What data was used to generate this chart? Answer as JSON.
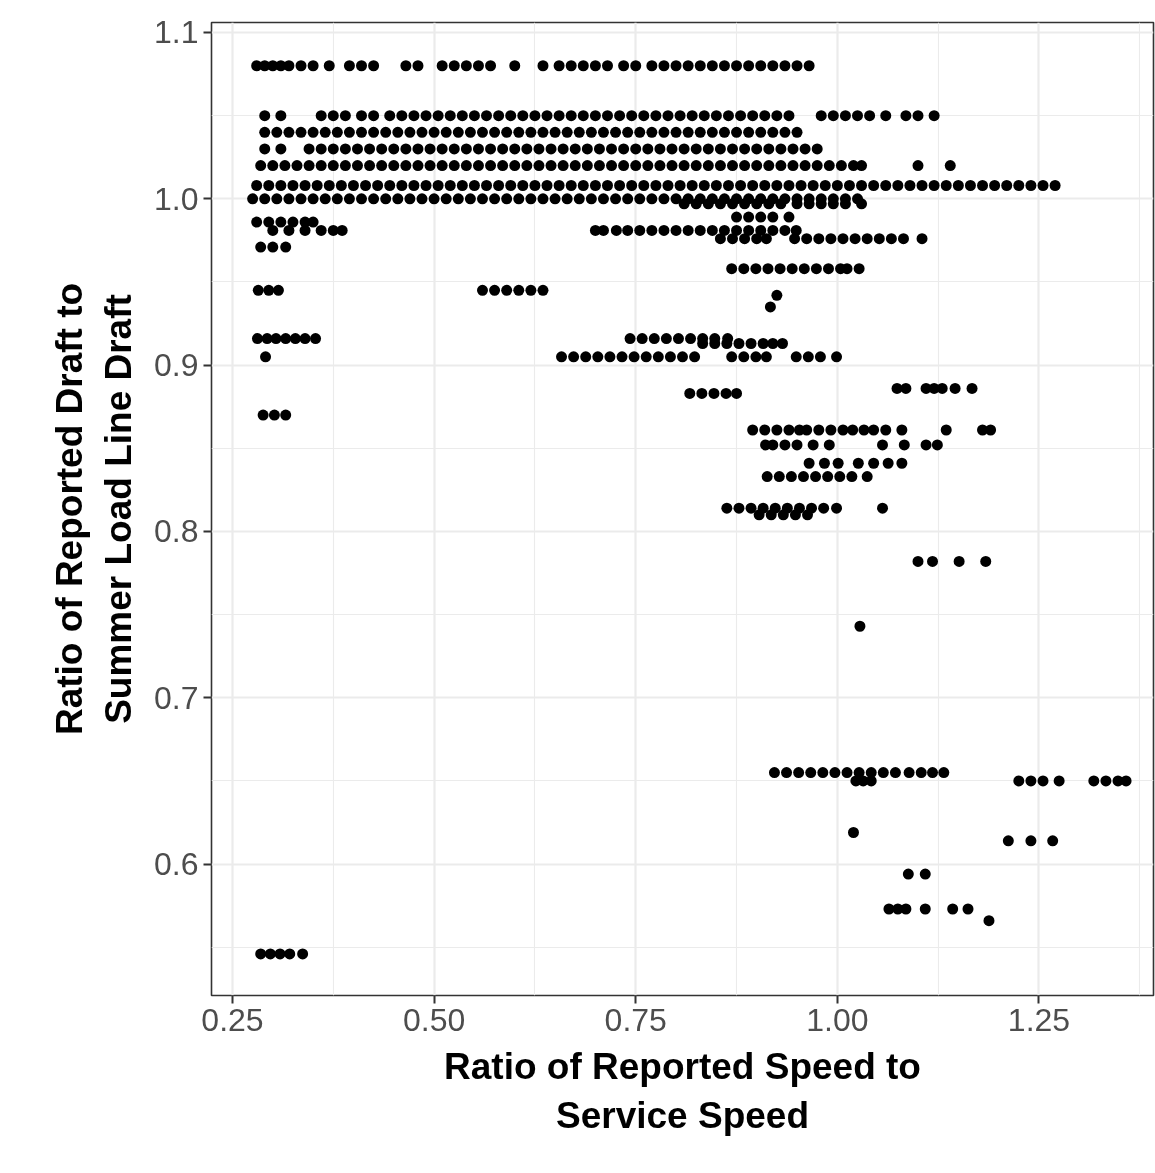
{
  "chart_data": {
    "type": "scatter",
    "xlabel": "Ratio of Reported Speed to Service Speed",
    "ylabel": "Ratio of Reported Draft to Summer Load Line Draft",
    "marker": "circle",
    "grid": true,
    "xlim": [
      0.224,
      1.392
    ],
    "ylim": [
      0.521,
      1.106
    ],
    "xticks": [
      {
        "value": 0.25,
        "label": "0.25"
      },
      {
        "value": 0.5,
        "label": "0.50"
      },
      {
        "value": 0.75,
        "label": "0.75"
      },
      {
        "value": 1.0,
        "label": "1.00"
      },
      {
        "value": 1.25,
        "label": "1.25"
      }
    ],
    "yticks": [
      {
        "value": 0.6,
        "label": "0.6"
      },
      {
        "value": 0.7,
        "label": "0.7"
      },
      {
        "value": 0.8,
        "label": "0.8"
      },
      {
        "value": 0.9,
        "label": "0.9"
      },
      {
        "value": 1.0,
        "label": "1.0"
      },
      {
        "value": 1.1,
        "label": "1.1"
      }
    ],
    "series": [
      {
        "color": "#000000",
        "x": [
          0.28,
          0.29,
          0.3,
          0.31,
          0.32,
          0.335,
          0.35,
          0.37,
          0.395,
          0.41,
          0.425,
          0.465,
          0.48,
          0.51,
          0.525,
          0.54,
          0.555,
          0.57,
          0.6,
          0.635,
          0.655,
          0.67,
          0.685,
          0.7,
          0.715,
          0.735,
          0.75,
          0.77,
          0.785,
          0.8,
          0.815,
          0.83,
          0.845,
          0.86,
          0.875,
          0.89,
          0.905,
          0.92,
          0.935,
          0.95,
          0.965
        ],
        "values": [
          1.08,
          1.08,
          1.08,
          1.08,
          1.08,
          1.08,
          1.08,
          1.08,
          1.08,
          1.08,
          1.08,
          1.08,
          1.08,
          1.08,
          1.08,
          1.08,
          1.08,
          1.08,
          1.08,
          1.08,
          1.08,
          1.08,
          1.08,
          1.08,
          1.08,
          1.08,
          1.08,
          1.08,
          1.08,
          1.08,
          1.08,
          1.08,
          1.08,
          1.08,
          1.08,
          1.08,
          1.08,
          1.08,
          1.08,
          1.08,
          1.08
        ]
      },
      {
        "color": "#000000",
        "x": [
          0.29,
          0.31,
          0.36,
          0.375,
          0.39,
          0.41,
          0.425,
          0.445,
          0.46,
          0.475,
          0.49,
          0.505,
          0.52,
          0.535,
          0.55,
          0.565,
          0.58,
          0.595,
          0.61,
          0.625,
          0.64,
          0.655,
          0.67,
          0.685,
          0.7,
          0.715,
          0.73,
          0.745,
          0.76,
          0.775,
          0.79,
          0.805,
          0.82,
          0.835,
          0.85,
          0.865,
          0.88,
          0.895,
          0.91,
          0.925,
          0.94,
          0.98,
          0.995,
          1.01,
          1.025,
          1.04,
          1.06,
          1.085,
          1.1,
          1.12
        ],
        "values": [
          1.05,
          1.05,
          1.05,
          1.05,
          1.05,
          1.05,
          1.05,
          1.05,
          1.05,
          1.05,
          1.05,
          1.05,
          1.05,
          1.05,
          1.05,
          1.05,
          1.05,
          1.05,
          1.05,
          1.05,
          1.05,
          1.05,
          1.05,
          1.05,
          1.05,
          1.05,
          1.05,
          1.05,
          1.05,
          1.05,
          1.05,
          1.05,
          1.05,
          1.05,
          1.05,
          1.05,
          1.05,
          1.05,
          1.05,
          1.05,
          1.05,
          1.05,
          1.05,
          1.05,
          1.05,
          1.05,
          1.05,
          1.05,
          1.05,
          1.05
        ]
      },
      {
        "color": "#000000",
        "x": [
          0.29,
          0.305,
          0.32,
          0.335,
          0.35,
          0.365,
          0.38,
          0.395,
          0.41,
          0.425,
          0.44,
          0.455,
          0.47,
          0.485,
          0.5,
          0.515,
          0.53,
          0.545,
          0.56,
          0.575,
          0.59,
          0.605,
          0.62,
          0.635,
          0.65,
          0.665,
          0.68,
          0.695,
          0.71,
          0.725,
          0.74,
          0.755,
          0.77,
          0.785,
          0.8,
          0.815,
          0.83,
          0.845,
          0.86,
          0.875,
          0.89,
          0.905,
          0.92,
          0.935,
          0.95
        ],
        "values": [
          1.04,
          1.04,
          1.04,
          1.04,
          1.04,
          1.04,
          1.04,
          1.04,
          1.04,
          1.04,
          1.04,
          1.04,
          1.04,
          1.04,
          1.04,
          1.04,
          1.04,
          1.04,
          1.04,
          1.04,
          1.04,
          1.04,
          1.04,
          1.04,
          1.04,
          1.04,
          1.04,
          1.04,
          1.04,
          1.04,
          1.04,
          1.04,
          1.04,
          1.04,
          1.04,
          1.04,
          1.04,
          1.04,
          1.04,
          1.04,
          1.04,
          1.04,
          1.04,
          1.04,
          1.04
        ]
      },
      {
        "color": "#000000",
        "x": [
          0.29,
          0.31,
          0.345,
          0.36,
          0.375,
          0.39,
          0.405,
          0.42,
          0.435,
          0.45,
          0.465,
          0.48,
          0.495,
          0.51,
          0.525,
          0.54,
          0.555,
          0.57,
          0.585,
          0.6,
          0.615,
          0.63,
          0.645,
          0.66,
          0.675,
          0.69,
          0.705,
          0.72,
          0.735,
          0.75,
          0.765,
          0.78,
          0.795,
          0.81,
          0.825,
          0.84,
          0.855,
          0.87,
          0.885,
          0.9,
          0.915,
          0.93,
          0.945,
          0.96,
          0.975
        ],
        "values": [
          1.03,
          1.03,
          1.03,
          1.03,
          1.03,
          1.03,
          1.03,
          1.03,
          1.03,
          1.03,
          1.03,
          1.03,
          1.03,
          1.03,
          1.03,
          1.03,
          1.03,
          1.03,
          1.03,
          1.03,
          1.03,
          1.03,
          1.03,
          1.03,
          1.03,
          1.03,
          1.03,
          1.03,
          1.03,
          1.03,
          1.03,
          1.03,
          1.03,
          1.03,
          1.03,
          1.03,
          1.03,
          1.03,
          1.03,
          1.03,
          1.03,
          1.03,
          1.03,
          1.03,
          1.03
        ]
      },
      {
        "color": "#000000",
        "x": [
          0.285,
          0.3,
          0.315,
          0.33,
          0.345,
          0.36,
          0.375,
          0.39,
          0.405,
          0.42,
          0.435,
          0.45,
          0.465,
          0.48,
          0.495,
          0.51,
          0.525,
          0.54,
          0.555,
          0.57,
          0.585,
          0.6,
          0.615,
          0.63,
          0.645,
          0.66,
          0.675,
          0.69,
          0.705,
          0.72,
          0.735,
          0.75,
          0.765,
          0.78,
          0.795,
          0.81,
          0.825,
          0.84,
          0.855,
          0.87,
          0.885,
          0.9,
          0.915,
          0.93,
          0.945,
          0.96,
          0.975,
          0.99,
          1.005,
          1.02,
          1.03,
          1.1,
          1.14
        ],
        "values": [
          1.02,
          1.02,
          1.02,
          1.02,
          1.02,
          1.02,
          1.02,
          1.02,
          1.02,
          1.02,
          1.02,
          1.02,
          1.02,
          1.02,
          1.02,
          1.02,
          1.02,
          1.02,
          1.02,
          1.02,
          1.02,
          1.02,
          1.02,
          1.02,
          1.02,
          1.02,
          1.02,
          1.02,
          1.02,
          1.02,
          1.02,
          1.02,
          1.02,
          1.02,
          1.02,
          1.02,
          1.02,
          1.02,
          1.02,
          1.02,
          1.02,
          1.02,
          1.02,
          1.02,
          1.02,
          1.02,
          1.02,
          1.02,
          1.02,
          1.02,
          1.02,
          1.02,
          1.02
        ]
      },
      {
        "color": "#000000",
        "x": [
          0.28,
          0.295,
          0.31,
          0.325,
          0.34,
          0.355,
          0.37,
          0.385,
          0.4,
          0.415,
          0.43,
          0.445,
          0.46,
          0.475,
          0.49,
          0.505,
          0.52,
          0.535,
          0.55,
          0.565,
          0.58,
          0.595,
          0.61,
          0.625,
          0.64,
          0.655,
          0.67,
          0.685,
          0.7,
          0.715,
          0.73,
          0.745,
          0.76,
          0.775,
          0.79,
          0.805,
          0.82,
          0.835,
          0.85,
          0.865,
          0.88,
          0.895,
          0.91,
          0.925,
          0.94,
          0.955,
          0.97,
          0.985,
          1.0,
          1.015,
          1.03,
          1.045,
          1.06,
          1.075,
          1.09,
          1.105,
          1.12,
          1.135,
          1.15,
          1.165,
          1.18,
          1.195,
          1.21,
          1.225,
          1.24,
          1.255,
          1.27
        ],
        "values": [
          1.008,
          1.008,
          1.008,
          1.008,
          1.008,
          1.008,
          1.008,
          1.008,
          1.008,
          1.008,
          1.008,
          1.008,
          1.008,
          1.008,
          1.008,
          1.008,
          1.008,
          1.008,
          1.008,
          1.008,
          1.008,
          1.008,
          1.008,
          1.008,
          1.008,
          1.008,
          1.008,
          1.008,
          1.008,
          1.008,
          1.008,
          1.008,
          1.008,
          1.008,
          1.008,
          1.008,
          1.008,
          1.008,
          1.008,
          1.008,
          1.008,
          1.008,
          1.008,
          1.008,
          1.008,
          1.008,
          1.008,
          1.008,
          1.008,
          1.008,
          1.008,
          1.008,
          1.008,
          1.008,
          1.008,
          1.008,
          1.008,
          1.008,
          1.008,
          1.008,
          1.008,
          1.008,
          1.008,
          1.008,
          1.008,
          1.008,
          1.008
        ]
      },
      {
        "color": "#000000",
        "x": [
          0.275,
          0.29,
          0.305,
          0.32,
          0.335,
          0.35,
          0.365,
          0.38,
          0.395,
          0.41,
          0.425,
          0.44,
          0.455,
          0.47,
          0.485,
          0.5,
          0.515,
          0.53,
          0.545,
          0.56,
          0.575,
          0.59,
          0.605,
          0.62,
          0.635,
          0.65,
          0.665,
          0.68,
          0.695,
          0.71,
          0.725,
          0.74,
          0.755,
          0.77,
          0.785,
          0.8,
          0.815,
          0.83,
          0.845,
          0.86,
          0.875,
          0.89,
          0.905,
          0.92,
          0.935,
          0.95,
          0.965,
          0.98,
          0.995,
          1.01,
          1.025
        ],
        "values": [
          1.0,
          1.0,
          1.0,
          1.0,
          1.0,
          1.0,
          1.0,
          1.0,
          1.0,
          1.0,
          1.0,
          1.0,
          1.0,
          1.0,
          1.0,
          1.0,
          1.0,
          1.0,
          1.0,
          1.0,
          1.0,
          1.0,
          1.0,
          1.0,
          1.0,
          1.0,
          1.0,
          1.0,
          1.0,
          1.0,
          1.0,
          1.0,
          1.0,
          1.0,
          1.0,
          1.0,
          1.0,
          1.0,
          1.0,
          1.0,
          1.0,
          1.0,
          1.0,
          1.0,
          1.0,
          1.0,
          1.0,
          1.0,
          1.0,
          1.0,
          1.0
        ]
      },
      {
        "color": "#000000",
        "x": [
          0.81,
          0.825,
          0.84,
          0.855,
          0.87,
          0.885,
          0.9,
          0.915,
          0.93,
          0.95,
          0.965,
          0.98,
          0.995,
          1.01,
          1.03
        ],
        "values": [
          0.997,
          0.997,
          0.997,
          0.997,
          0.997,
          0.997,
          0.997,
          0.997,
          0.997,
          0.997,
          0.997,
          0.997,
          0.997,
          0.997,
          0.997
        ]
      },
      {
        "color": "#000000",
        "x": [
          0.875,
          0.89,
          0.905,
          0.92,
          0.94
        ],
        "values": [
          0.989,
          0.989,
          0.989,
          0.989,
          0.989
        ]
      },
      {
        "color": "#000000",
        "x": [
          0.28,
          0.295,
          0.31,
          0.325,
          0.34,
          0.35
        ],
        "values": [
          0.986,
          0.986,
          0.986,
          0.986,
          0.986,
          0.986
        ]
      },
      {
        "color": "#000000",
        "x": [
          0.3,
          0.32,
          0.34,
          0.36,
          0.375,
          0.386,
          0.7,
          0.71,
          0.726,
          0.74,
          0.755,
          0.77,
          0.785,
          0.8,
          0.815,
          0.83,
          0.845,
          0.86,
          0.875,
          0.89,
          0.905,
          0.92,
          0.935,
          0.949
        ],
        "values": [
          0.981,
          0.981,
          0.981,
          0.981,
          0.981,
          0.981,
          0.981,
          0.981,
          0.981,
          0.981,
          0.981,
          0.981,
          0.981,
          0.981,
          0.981,
          0.981,
          0.981,
          0.981,
          0.981,
          0.981,
          0.981,
          0.981,
          0.981,
          0.981
        ]
      },
      {
        "color": "#000000",
        "x": [
          0.855,
          0.87,
          0.885,
          0.9,
          0.912,
          0.947,
          0.962,
          0.977,
          0.992,
          1.007,
          1.022,
          1.037,
          1.052,
          1.067,
          1.082,
          1.105
        ],
        "values": [
          0.976,
          0.976,
          0.976,
          0.976,
          0.976,
          0.976,
          0.976,
          0.976,
          0.976,
          0.976,
          0.976,
          0.976,
          0.976,
          0.976,
          0.976,
          0.976
        ]
      },
      {
        "color": "#000000",
        "x": [
          0.285,
          0.3,
          0.316
        ],
        "values": [
          0.971,
          0.971,
          0.971
        ]
      },
      {
        "color": "#000000",
        "x": [
          0.869,
          0.884,
          0.899,
          0.914,
          0.929,
          0.944,
          0.959,
          0.974,
          0.989,
          1.004,
          1.012,
          1.027
        ],
        "values": [
          0.958,
          0.958,
          0.958,
          0.958,
          0.958,
          0.958,
          0.958,
          0.958,
          0.958,
          0.958,
          0.958,
          0.958
        ]
      },
      {
        "color": "#000000",
        "x": [
          0.282,
          0.295,
          0.307,
          0.56,
          0.575,
          0.59,
          0.605,
          0.62,
          0.635
        ],
        "values": [
          0.945,
          0.945,
          0.945,
          0.945,
          0.945,
          0.945,
          0.945,
          0.945,
          0.945
        ]
      },
      {
        "color": "#000000",
        "x": [
          0.925,
          0.917
        ],
        "values": [
          0.942,
          0.935
        ]
      },
      {
        "color": "#000000",
        "x": [
          0.281,
          0.293,
          0.304,
          0.316,
          0.328,
          0.34,
          0.353,
          0.743,
          0.758,
          0.773,
          0.788,
          0.803,
          0.818,
          0.833,
          0.848,
          0.864
        ],
        "values": [
          0.916,
          0.916,
          0.916,
          0.916,
          0.916,
          0.916,
          0.916,
          0.916,
          0.916,
          0.916,
          0.916,
          0.916,
          0.916,
          0.916,
          0.916,
          0.916
        ]
      },
      {
        "color": "#000000",
        "x": [
          0.833,
          0.848,
          0.863,
          0.878,
          0.893,
          0.908,
          0.92,
          0.932
        ],
        "values": [
          0.913,
          0.913,
          0.913,
          0.913,
          0.913,
          0.913,
          0.913,
          0.913
        ]
      },
      {
        "color": "#000000",
        "x": [
          0.291,
          0.658,
          0.673,
          0.688,
          0.703,
          0.718,
          0.733,
          0.748,
          0.763,
          0.778,
          0.793,
          0.808,
          0.823,
          0.869,
          0.884,
          0.899,
          0.912,
          0.949,
          0.964,
          0.979,
          0.999
        ],
        "values": [
          0.905,
          0.905,
          0.905,
          0.905,
          0.905,
          0.905,
          0.905,
          0.905,
          0.905,
          0.905,
          0.905,
          0.905,
          0.905,
          0.905,
          0.905,
          0.905,
          0.905,
          0.905,
          0.905,
          0.905,
          0.905
        ]
      },
      {
        "color": "#000000",
        "x": [
          1.074,
          1.085,
          1.11,
          1.12,
          1.13,
          1.146,
          1.167
        ],
        "values": [
          0.886,
          0.886,
          0.886,
          0.886,
          0.886,
          0.886,
          0.886
        ]
      },
      {
        "color": "#000000",
        "x": [
          0.817,
          0.832,
          0.847,
          0.862,
          0.875
        ],
        "values": [
          0.883,
          0.883,
          0.883,
          0.883,
          0.883
        ]
      },
      {
        "color": "#000000",
        "x": [
          0.288,
          0.302,
          0.316
        ],
        "values": [
          0.87,
          0.87,
          0.87
        ]
      },
      {
        "color": "#000000",
        "x": [
          0.895,
          0.91,
          0.925,
          0.94,
          0.953,
          0.962,
          0.977,
          0.992,
          1.007,
          1.019,
          1.033,
          1.045,
          1.06,
          1.08,
          1.135,
          1.18,
          1.19
        ],
        "values": [
          0.861,
          0.861,
          0.861,
          0.861,
          0.861,
          0.861,
          0.861,
          0.861,
          0.861,
          0.861,
          0.861,
          0.861,
          0.861,
          0.861,
          0.861,
          0.861,
          0.861
        ]
      },
      {
        "color": "#000000",
        "x": [
          0.911,
          0.92,
          0.935,
          0.95,
          0.97,
          0.99,
          1.056,
          1.083,
          1.11,
          1.124
        ],
        "values": [
          0.852,
          0.852,
          0.852,
          0.852,
          0.852,
          0.852,
          0.852,
          0.852,
          0.852,
          0.852
        ]
      },
      {
        "color": "#000000",
        "x": [
          0.965,
          0.984,
          1.001,
          1.026,
          1.045,
          1.063,
          1.08
        ],
        "values": [
          0.841,
          0.841,
          0.841,
          0.841,
          0.841,
          0.841,
          0.841
        ]
      },
      {
        "color": "#000000",
        "x": [
          0.913,
          0.928,
          0.943,
          0.958,
          0.973,
          0.988,
          1.003,
          1.018,
          1.037
        ],
        "values": [
          0.833,
          0.833,
          0.833,
          0.833,
          0.833,
          0.833,
          0.833,
          0.833,
          0.833
        ]
      },
      {
        "color": "#000000",
        "x": [
          0.863,
          0.878,
          0.893,
          0.908,
          0.923,
          0.938,
          0.953,
          0.968,
          0.983,
          0.999,
          1.056
        ],
        "values": [
          0.814,
          0.814,
          0.814,
          0.814,
          0.814,
          0.814,
          0.814,
          0.814,
          0.814,
          0.814,
          0.814
        ]
      },
      {
        "color": "#000000",
        "x": [
          0.903,
          0.918,
          0.933,
          0.948,
          0.963
        ],
        "values": [
          0.81,
          0.81,
          0.81,
          0.81,
          0.81
        ]
      },
      {
        "color": "#000000",
        "x": [
          1.1,
          1.118,
          1.151,
          1.184,
          1.028
        ],
        "values": [
          0.782,
          0.782,
          0.782,
          0.782,
          0.743
        ]
      },
      {
        "color": "#000000",
        "x": [
          0.922,
          0.937,
          0.952,
          0.967,
          0.982,
          0.997,
          1.012,
          1.027,
          1.042,
          1.057,
          1.072,
          1.089,
          1.104,
          1.118,
          1.132
        ],
        "values": [
          0.655,
          0.655,
          0.655,
          0.655,
          0.655,
          0.655,
          0.655,
          0.655,
          0.655,
          0.655,
          0.655,
          0.655,
          0.655,
          0.655,
          0.655
        ]
      },
      {
        "color": "#000000",
        "x": [
          1.023,
          1.032,
          1.042,
          1.225,
          1.24,
          1.255,
          1.275,
          1.318,
          1.333,
          1.348,
          1.358
        ],
        "values": [
          0.65,
          0.65,
          0.65,
          0.65,
          0.65,
          0.65,
          0.65,
          0.65,
          0.65,
          0.65,
          0.65
        ]
      },
      {
        "color": "#000000",
        "x": [
          1.02,
          1.212,
          1.24,
          1.267,
          1.088,
          1.109
        ],
        "values": [
          0.619,
          0.614,
          0.614,
          0.614,
          0.594,
          0.594
        ]
      },
      {
        "color": "#000000",
        "x": [
          1.064,
          1.075,
          1.085,
          1.109,
          1.143,
          1.162,
          1.188
        ],
        "values": [
          0.573,
          0.573,
          0.573,
          0.573,
          0.573,
          0.573,
          0.566
        ]
      },
      {
        "color": "#000000",
        "x": [
          0.285,
          0.297,
          0.309,
          0.321,
          0.337
        ],
        "values": [
          0.546,
          0.546,
          0.546,
          0.546,
          0.546
        ]
      }
    ]
  }
}
